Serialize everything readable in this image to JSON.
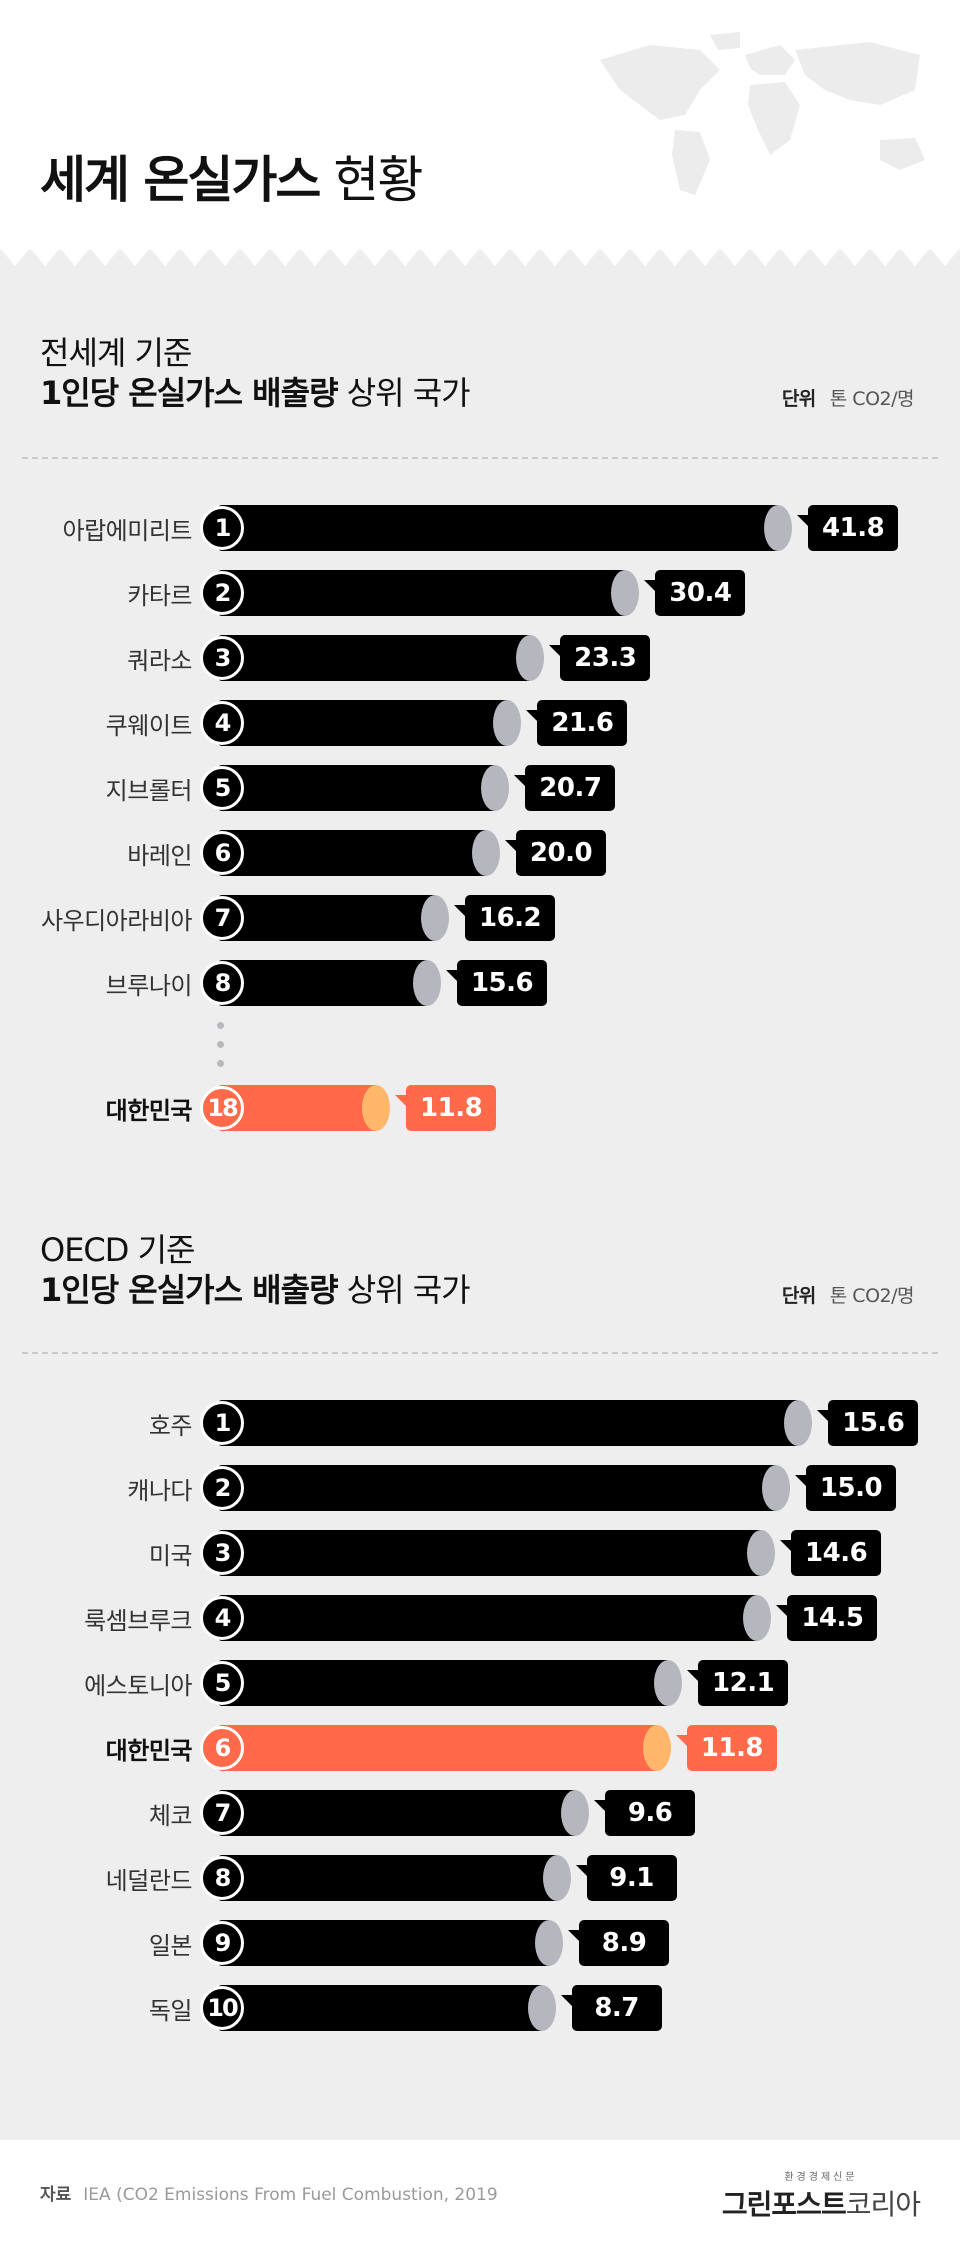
{
  "header": {
    "title_bold": "세계 온실가스",
    "title_light": "현황"
  },
  "sections": [
    {
      "subtitle": "전세계 기준",
      "title_bold": "1인당 온실가스 배출량",
      "title_light": "상위 국가",
      "unit_label": "단위",
      "unit_value": "톤 CO2/명"
    },
    {
      "subtitle": "OECD 기준",
      "title_bold": "1인당 온실가스 배출량",
      "title_light": "상위 국가",
      "unit_label": "단위",
      "unit_value": "톤 CO2/명"
    }
  ],
  "colors": {
    "bar": "#000000",
    "bar_cap": "#b6b6bf",
    "highlight": "#ff6b4a",
    "highlight_cap": "#ffb86b",
    "background": "#efeeef"
  },
  "chart_data": [
    {
      "type": "bar",
      "orientation": "horizontal",
      "categories": [
        "아랍에미리트",
        "카타르",
        "쿼라소",
        "쿠웨이트",
        "지브롤터",
        "바레인",
        "사우디아라비아",
        "브루나이",
        "대한민국"
      ],
      "ranks": [
        "1",
        "2",
        "3",
        "4",
        "5",
        "6",
        "7",
        "8",
        "18"
      ],
      "values": [
        41.8,
        30.4,
        23.3,
        21.6,
        20.7,
        20.0,
        16.2,
        15.6,
        11.8
      ],
      "value_labels": [
        "41.8",
        "30.4",
        "23.3",
        "21.6",
        "20.7",
        "20.0",
        "16.2",
        "15.6",
        "11.8"
      ],
      "highlight": "대한민국",
      "gap_before_index": 8,
      "unit": "톤 CO2/명"
    },
    {
      "type": "bar",
      "orientation": "horizontal",
      "categories": [
        "호주",
        "캐나다",
        "미국",
        "룩셈브루크",
        "에스토니아",
        "대한민국",
        "체코",
        "네덜란드",
        "일본",
        "독일"
      ],
      "ranks": [
        "1",
        "2",
        "3",
        "4",
        "5",
        "6",
        "7",
        "8",
        "9",
        "10"
      ],
      "values": [
        15.6,
        15.0,
        14.6,
        14.5,
        12.1,
        11.8,
        9.6,
        9.1,
        8.9,
        8.7
      ],
      "value_labels": [
        "15.6",
        "15.0",
        "14.6",
        "14.5",
        "12.1",
        "11.8",
        "9.6",
        "9.1",
        "8.9",
        "8.7"
      ],
      "highlight": "대한민국",
      "unit": "톤 CO2/명"
    }
  ],
  "footer": {
    "source_label": "자료",
    "source_text": "IEA (CO2 Emissions From Fuel Combustion, 2019",
    "brand_small": "환경경제신문",
    "brand_bold": "그린포스트",
    "brand_light": "코리아"
  }
}
